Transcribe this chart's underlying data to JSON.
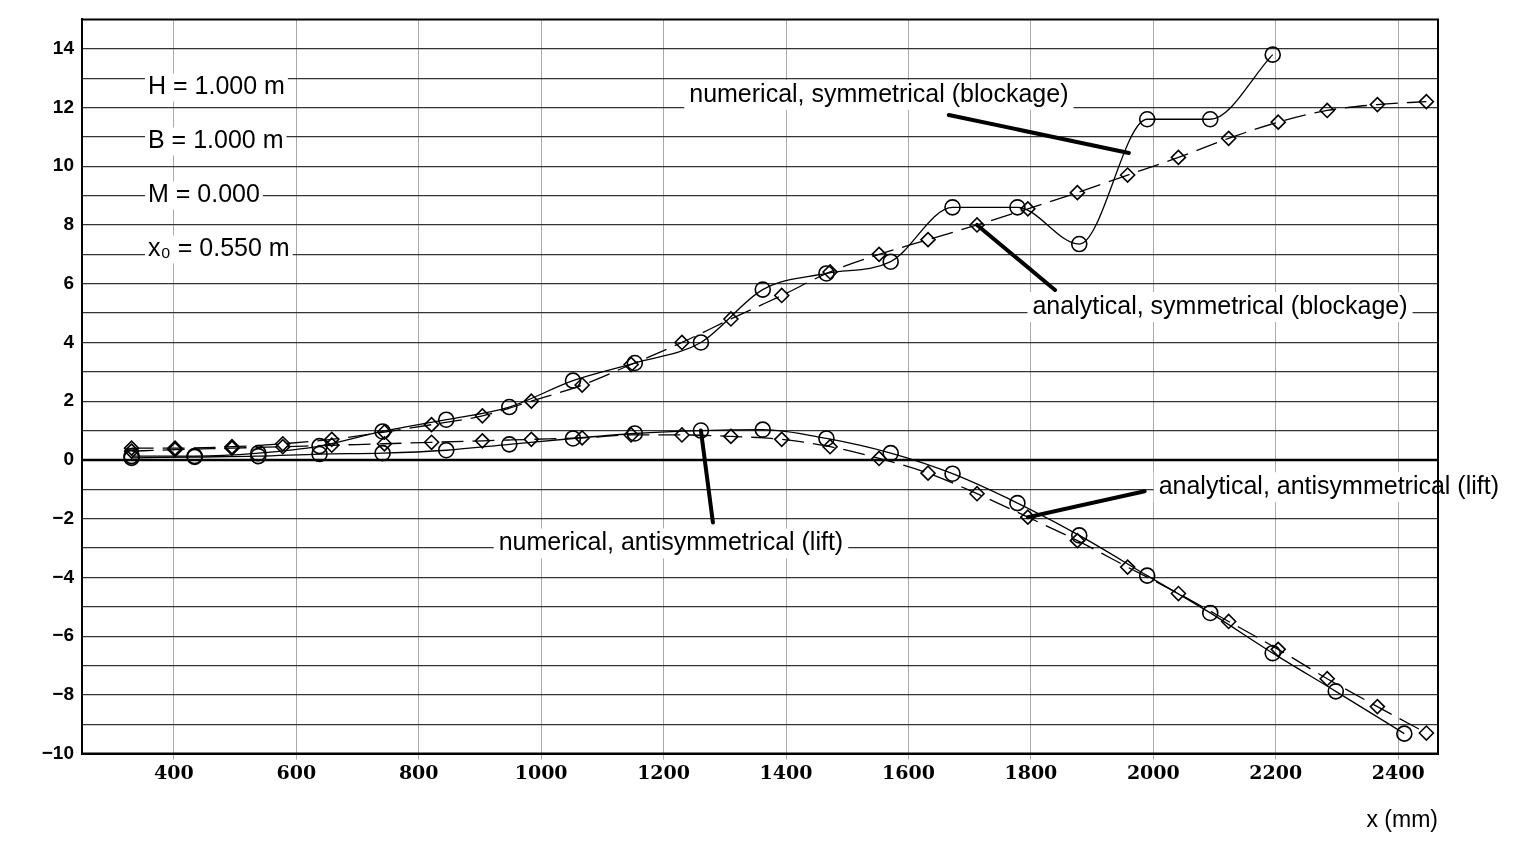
{
  "chart_data": {
    "type": "line",
    "xlabel": "x (mm)",
    "xlim": [
      250,
      2465
    ],
    "xticks": [
      400,
      600,
      800,
      1000,
      1200,
      1400,
      1600,
      1800,
      2000,
      2200,
      2400
    ],
    "ylim": [
      -10,
      15
    ],
    "yticks": [
      -10,
      {
        "value": -9,
        "label": null
      },
      -8,
      {
        "value": -7,
        "label": null
      },
      -6,
      {
        "value": -5,
        "label": null
      },
      -4,
      {
        "value": -3,
        "label": null
      },
      -2,
      {
        "value": -1,
        "label": null
      },
      0,
      {
        "value": 1,
        "label": null
      },
      2,
      {
        "value": 3,
        "label": null
      },
      4,
      {
        "value": 5,
        "label": null
      },
      6,
      {
        "value": 7,
        "label": null
      },
      8,
      {
        "value": 9,
        "label": null
      },
      10,
      {
        "value": 11,
        "label": null
      },
      12,
      {
        "value": 13,
        "label": null
      },
      14
    ],
    "grid": true,
    "legend": false,
    "annotations": [
      "H = 1.000 m",
      "B = 1.000 m",
      "M = 0.000",
      "x₀ = 0.550 m"
    ],
    "series": [
      {
        "name": "numerical, symmetrical (blockage)",
        "color": "#000000",
        "marker": "circle",
        "line_style": "solid",
        "x": [
          331,
          434,
          538,
          638,
          741,
          845,
          948,
          1052,
          1153,
          1261,
          1362,
          1466,
          1571,
          1672,
          1778,
          1879,
          1990,
          2093,
          2195
        ],
        "values": [
          0.13,
          0.13,
          0.23,
          0.47,
          0.97,
          1.37,
          1.8,
          2.7,
          3.3,
          4.0,
          5.8,
          6.35,
          6.75,
          8.6,
          8.6,
          7.35,
          11.6,
          11.6,
          13.8
        ]
      },
      {
        "name": "analytical, symmetrical (blockage)",
        "color": "#000000",
        "marker": "diamond",
        "line_style": "dashed",
        "x": [
          331,
          402,
          495,
          578,
          658,
          744,
          821,
          904,
          984,
          1067,
          1147,
          1230,
          1310,
          1393,
          1472,
          1552,
          1632,
          1712,
          1795,
          1876,
          1958,
          2041,
          2123,
          2204,
          2284,
          2366,
          2446
        ],
        "values": [
          0.4,
          0.4,
          0.45,
          0.55,
          0.7,
          0.95,
          1.2,
          1.5,
          2.0,
          2.55,
          3.25,
          4.0,
          4.8,
          5.6,
          6.4,
          7.0,
          7.5,
          8.0,
          8.55,
          9.1,
          9.7,
          10.3,
          10.95,
          11.5,
          11.9,
          12.1,
          12.2
        ]
      },
      {
        "name": "numerical, antisymmetrical (lift)",
        "color": "#000000",
        "marker": "circle",
        "line_style": "solid",
        "x": [
          331,
          434,
          538,
          638,
          741,
          845,
          948,
          1052,
          1153,
          1261,
          1362,
          1466,
          1571,
          1672,
          1778,
          1879,
          1990,
          2093,
          2195,
          2298,
          2410
        ],
        "values": [
          0.07,
          0.1,
          0.13,
          0.2,
          0.23,
          0.33,
          0.53,
          0.73,
          0.9,
          1.0,
          1.03,
          0.73,
          0.23,
          -0.47,
          -1.47,
          -2.57,
          -3.94,
          -5.21,
          -6.58,
          -7.88,
          -9.32
        ]
      },
      {
        "name": "analytical, antisymmetrical (lift)",
        "color": "#000000",
        "marker": "diamond",
        "line_style": "dashed",
        "x": [
          331,
          402,
          495,
          578,
          658,
          744,
          821,
          904,
          984,
          1067,
          1147,
          1230,
          1310,
          1393,
          1472,
          1552,
          1632,
          1712,
          1795,
          1876,
          1958,
          2041,
          2123,
          2204,
          2284,
          2366,
          2446
        ],
        "values": [
          0.3,
          0.35,
          0.4,
          0.45,
          0.5,
          0.55,
          0.6,
          0.65,
          0.7,
          0.75,
          0.85,
          0.85,
          0.8,
          0.7,
          0.45,
          0.05,
          -0.45,
          -1.15,
          -1.95,
          -2.75,
          -3.65,
          -4.55,
          -5.5,
          -6.45,
          -7.45,
          -8.4,
          -9.3
        ]
      }
    ]
  }
}
